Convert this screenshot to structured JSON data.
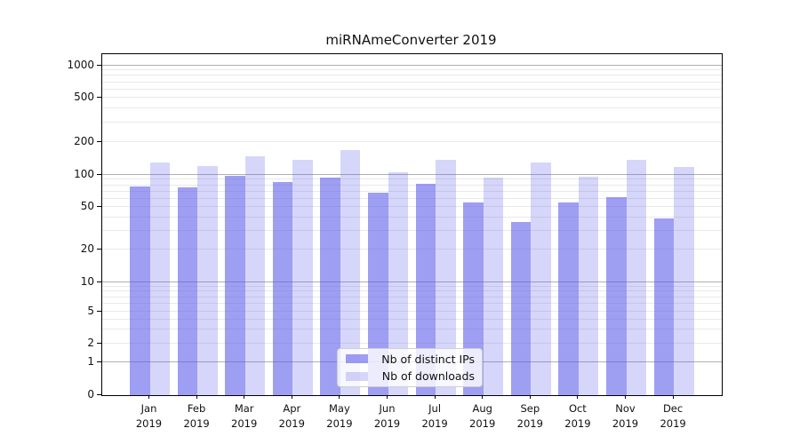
{
  "chart_data": {
    "type": "bar",
    "title": "miRNAmeConverter 2019",
    "x_categories": [
      {
        "month": "Jan",
        "year": "2019"
      },
      {
        "month": "Feb",
        "year": "2019"
      },
      {
        "month": "Mar",
        "year": "2019"
      },
      {
        "month": "Apr",
        "year": "2019"
      },
      {
        "month": "May",
        "year": "2019"
      },
      {
        "month": "Jun",
        "year": "2019"
      },
      {
        "month": "Jul",
        "year": "2019"
      },
      {
        "month": "Aug",
        "year": "2019"
      },
      {
        "month": "Sep",
        "year": "2019"
      },
      {
        "month": "Oct",
        "year": "2019"
      },
      {
        "month": "Nov",
        "year": "2019"
      },
      {
        "month": "Dec",
        "year": "2019"
      }
    ],
    "series": [
      {
        "name": "Nb of distinct IPs",
        "color": "rgba(90,90,235,0.59)",
        "values": [
          78,
          77,
          97,
          85,
          94,
          68,
          83,
          55,
          36,
          55,
          62,
          39
        ]
      },
      {
        "name": "Nb of downloads",
        "color": "rgba(90,90,235,0.25)",
        "values": [
          130,
          121,
          148,
          136,
          167,
          105,
          136,
          95,
          129,
          96,
          137,
          117
        ]
      }
    ],
    "y_axis": {
      "scale": "symlog",
      "ticks": [
        0,
        1,
        2,
        5,
        10,
        20,
        50,
        100,
        200,
        500,
        1000
      ],
      "major_gridlines": [
        1,
        10,
        100,
        1000
      ],
      "minor_gridlines": [
        2,
        3,
        4,
        5,
        6,
        7,
        8,
        9,
        20,
        30,
        40,
        50,
        60,
        70,
        80,
        90,
        200,
        300,
        400,
        500,
        600,
        700,
        800,
        900
      ],
      "ylim": [
        0,
        1000
      ]
    },
    "grid": true,
    "legend_position": "inside-bottom-center"
  },
  "colors": {
    "major_grid": "#b0b0b0",
    "minor_grid": "#e9e9e9",
    "spine": "#000000",
    "text": "#111111",
    "background": "#ffffff"
  }
}
